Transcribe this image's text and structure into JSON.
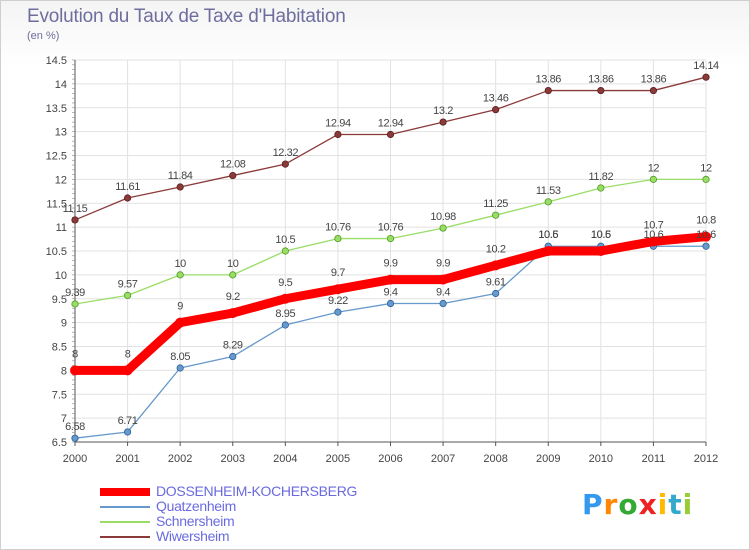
{
  "chart_data": {
    "type": "line",
    "title": "Evolution du Taux de Taxe d'Habitation",
    "subtitle": "(en %)",
    "x": [
      "2000",
      "2001",
      "2002",
      "2003",
      "2004",
      "2005",
      "2006",
      "2007",
      "2008",
      "2009",
      "2010",
      "2011",
      "2012"
    ],
    "ylim": [
      6.5,
      14.5
    ],
    "yticks": [
      "6.5",
      "7",
      "7.5",
      "8",
      "8.5",
      "9",
      "9.5",
      "10",
      "10.5",
      "11",
      "11.5",
      "12",
      "12.5",
      "13",
      "13.5",
      "14",
      "14.5"
    ],
    "grid": true,
    "legend_position": "bottom-left",
    "series": [
      {
        "name": "DOSSENHEIM-KOCHERSBERG",
        "color": "#ff0000",
        "values": [
          8,
          8,
          9,
          9.2,
          9.5,
          9.7,
          9.9,
          9.9,
          10.2,
          10.5,
          10.5,
          10.7,
          10.8
        ],
        "labels": [
          "8",
          "8",
          "9",
          "9.2",
          "9.5",
          "9.7",
          "9.9",
          "9.9",
          "10.2",
          "10.5",
          "10.5",
          "10.7",
          "10.8"
        ]
      },
      {
        "name": "Quatzenheim",
        "color": "#6699cc",
        "values": [
          6.58,
          6.71,
          8.05,
          8.29,
          8.95,
          9.22,
          9.4,
          9.4,
          9.61,
          10.6,
          10.6,
          10.6,
          10.6
        ],
        "labels": [
          "6.58",
          "6.71",
          "8.05",
          "8.29",
          "8.95",
          "9.22",
          "9.4",
          "9.4",
          "9.61",
          "10.6",
          "10.6",
          "10.6",
          "10.6"
        ]
      },
      {
        "name": "Schnersheim",
        "color": "#99dd66",
        "values": [
          9.39,
          9.57,
          10,
          10,
          10.5,
          10.76,
          10.76,
          10.98,
          11.25,
          11.53,
          11.82,
          12,
          12
        ],
        "labels": [
          "9.39",
          "9.57",
          "10",
          "10",
          "10.5",
          "10.76",
          "10.76",
          "10.98",
          "11.25",
          "11.53",
          "11.82",
          "12",
          "12"
        ]
      },
      {
        "name": "Wiwersheim",
        "color": "#8b3a3a",
        "values": [
          11.15,
          11.61,
          11.84,
          12.08,
          12.32,
          12.94,
          12.94,
          13.2,
          13.46,
          13.86,
          13.86,
          13.86,
          14.14
        ],
        "labels": [
          "11.15",
          "11.61",
          "11.84",
          "12.08",
          "12.32",
          "12.94",
          "12.94",
          "13.2",
          "13.46",
          "13.86",
          "13.86",
          "13.86",
          "14.14"
        ]
      }
    ]
  },
  "logo": {
    "letters": [
      "P",
      "r",
      "o",
      "x",
      "i",
      "t",
      "i"
    ],
    "colors": [
      "#3399ee",
      "#ff8800",
      "#33aa33",
      "#ee2222",
      "#ffbb00",
      "#33aacc",
      "#99cc33"
    ]
  }
}
